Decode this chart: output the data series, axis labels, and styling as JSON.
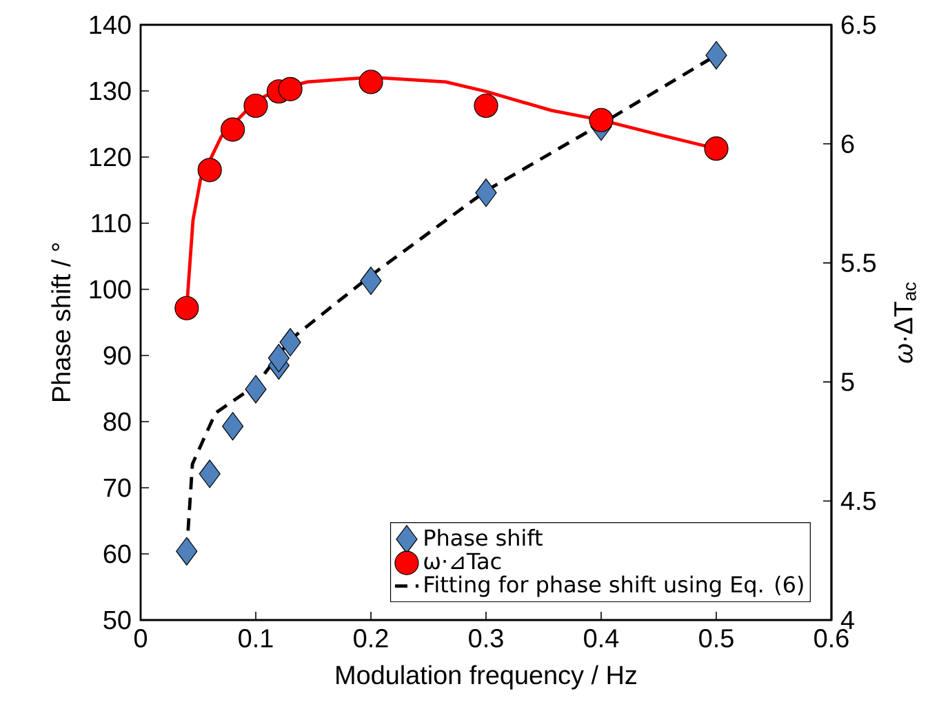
{
  "chart_data": {
    "type": "scatter",
    "xlabel": "Modulation frequency / Hz",
    "ylabel": "Phase shift / °",
    "y2label": "*ω*·ΔT$_{ac}$",
    "xlim": [
      0,
      0.6
    ],
    "xticks": [
      0,
      0.1,
      0.2,
      0.3,
      0.4,
      0.5,
      0.6
    ],
    "ylim": [
      50,
      140
    ],
    "yticks": [
      50,
      60,
      70,
      80,
      90,
      100,
      110,
      120,
      130,
      140
    ],
    "y2lim": [
      4,
      6.5
    ],
    "y2ticks": [
      4,
      4.5,
      5,
      5.5,
      6,
      6.5
    ],
    "legend": "bottom right",
    "grid": false,
    "series": [
      {
        "type": "line",
        "color": "#ff0000",
        "axis": "y2",
        "marker": "none",
        "line_style": "solid",
        "x": [
          0.04,
          0.0455,
          0.052,
          0.06,
          0.07,
          0.08,
          0.1,
          0.12,
          0.145,
          0.2,
          0.265,
          0.3,
          0.357,
          0.4,
          0.449,
          0.5
        ],
        "values": [
          5.31,
          5.68,
          5.85,
          5.93,
          6.03,
          6.08,
          6.18,
          6.23,
          6.26,
          6.28,
          6.26,
          6.22,
          6.14,
          6.1,
          6.04,
          5.98
        ]
      },
      {
        "name": "Phase shift",
        "color": "#4f81bd",
        "marker": "diamond",
        "x": [
          0.04,
          0.06,
          0.08,
          0.1,
          0.12,
          0.12,
          0.13,
          0.2,
          0.3,
          0.4,
          0.5
        ],
        "values": [
          60.4,
          72.1,
          79.3,
          84.9,
          88.5,
          89.6,
          92.0,
          101.3,
          114.6,
          124.6,
          135.4
        ]
      },
      {
        "name": "ω·⊿Tac",
        "color": "#ff0000",
        "axis": "y2",
        "marker": "circle",
        "x": [
          0.04,
          0.06,
          0.08,
          0.1,
          0.12,
          0.13,
          0.2,
          0.3,
          0.4,
          0.5
        ],
        "values": [
          5.31,
          5.89,
          6.06,
          6.16,
          6.22,
          6.23,
          6.26,
          6.16,
          6.1,
          5.98
        ]
      },
      {
        "type": "line",
        "name": "Fitting for phase shift using Eq. (6)",
        "color": "#000000",
        "marker": "none",
        "line_style": "dashed",
        "x": [
          0.04,
          0.045,
          0.065,
          0.1,
          0.13,
          0.2,
          0.3,
          0.4,
          0.5
        ],
        "values": [
          60.4,
          73.6,
          81.3,
          85.5,
          92.4,
          102.1,
          114.9,
          125,
          135.4
        ]
      }
    ]
  }
}
